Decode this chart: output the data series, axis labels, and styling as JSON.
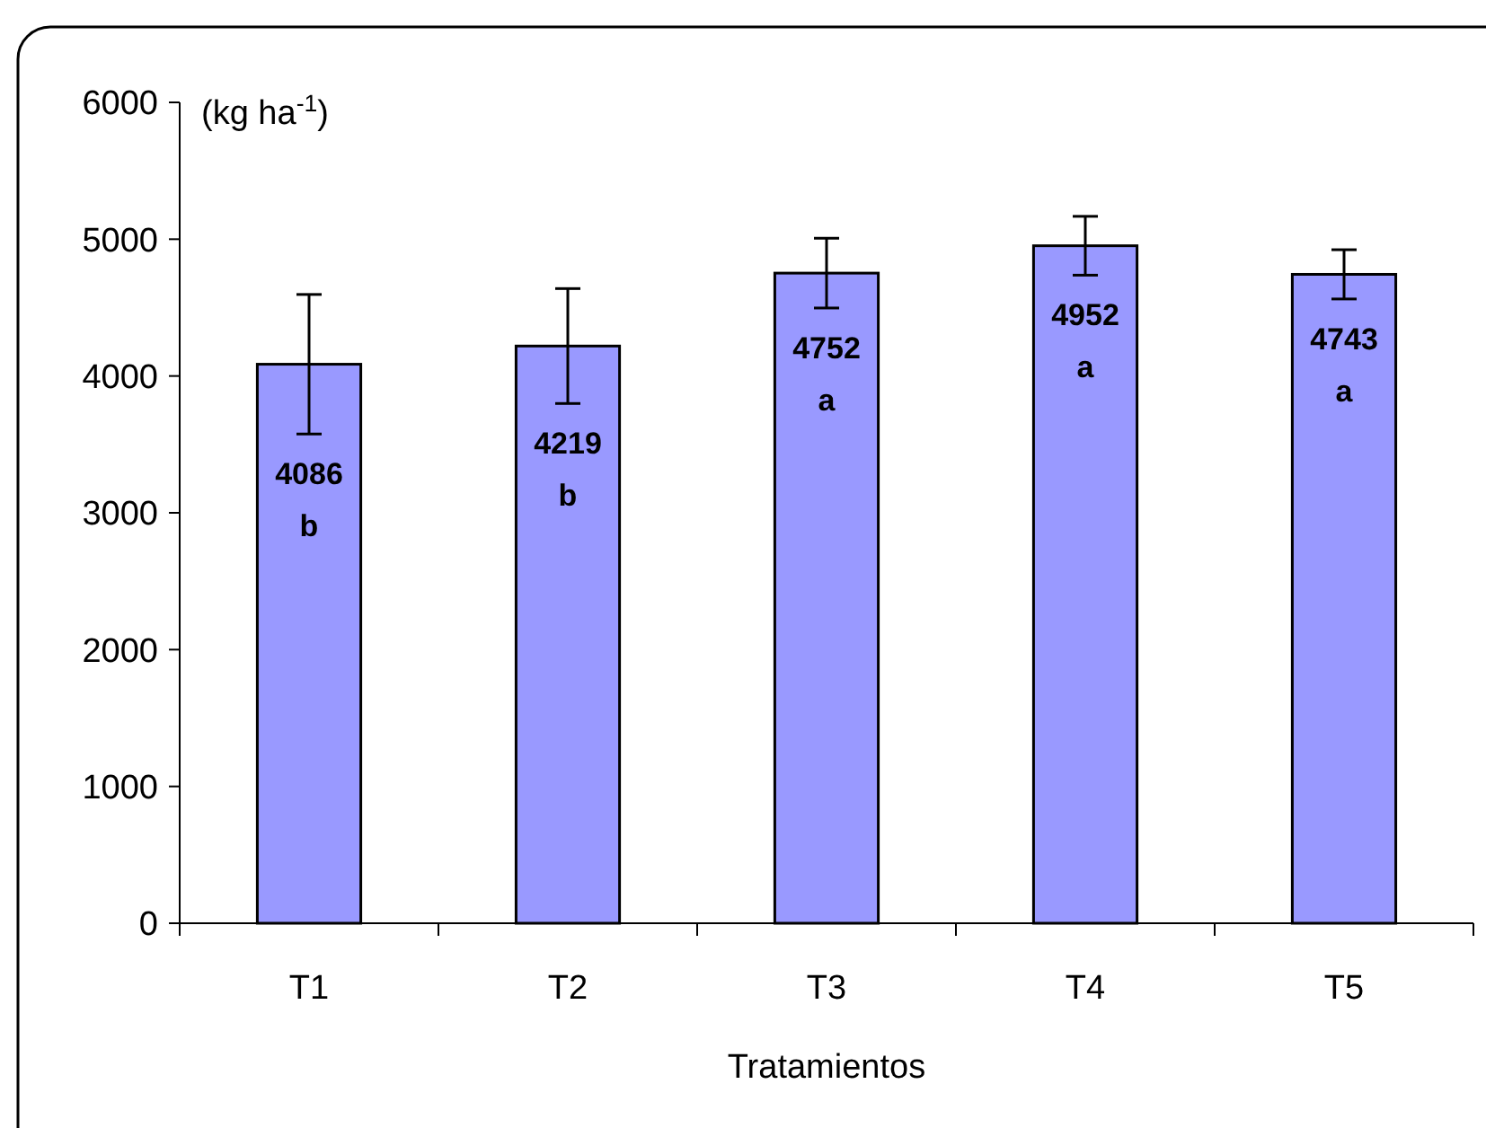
{
  "chart_data": {
    "type": "bar",
    "xlabel": "Tratamientos",
    "ylabel": "(kg ha$^{-1}$)",
    "categories": [
      "T1",
      "T2",
      "T3",
      "T4",
      "T5"
    ],
    "values": [
      4086,
      4219,
      4752,
      4952,
      4743
    ],
    "errors": [
      510,
      420,
      255,
      215,
      180
    ],
    "value_labels": [
      "4086\nb",
      "4219\nb",
      "4752\na",
      "4952\na",
      "4743\na"
    ],
    "color": "#9999ff",
    "ylim": [
      0,
      6000
    ],
    "yticks": [
      0,
      1000,
      2000,
      3000,
      4000,
      5000,
      6000
    ],
    "grid": false
  }
}
